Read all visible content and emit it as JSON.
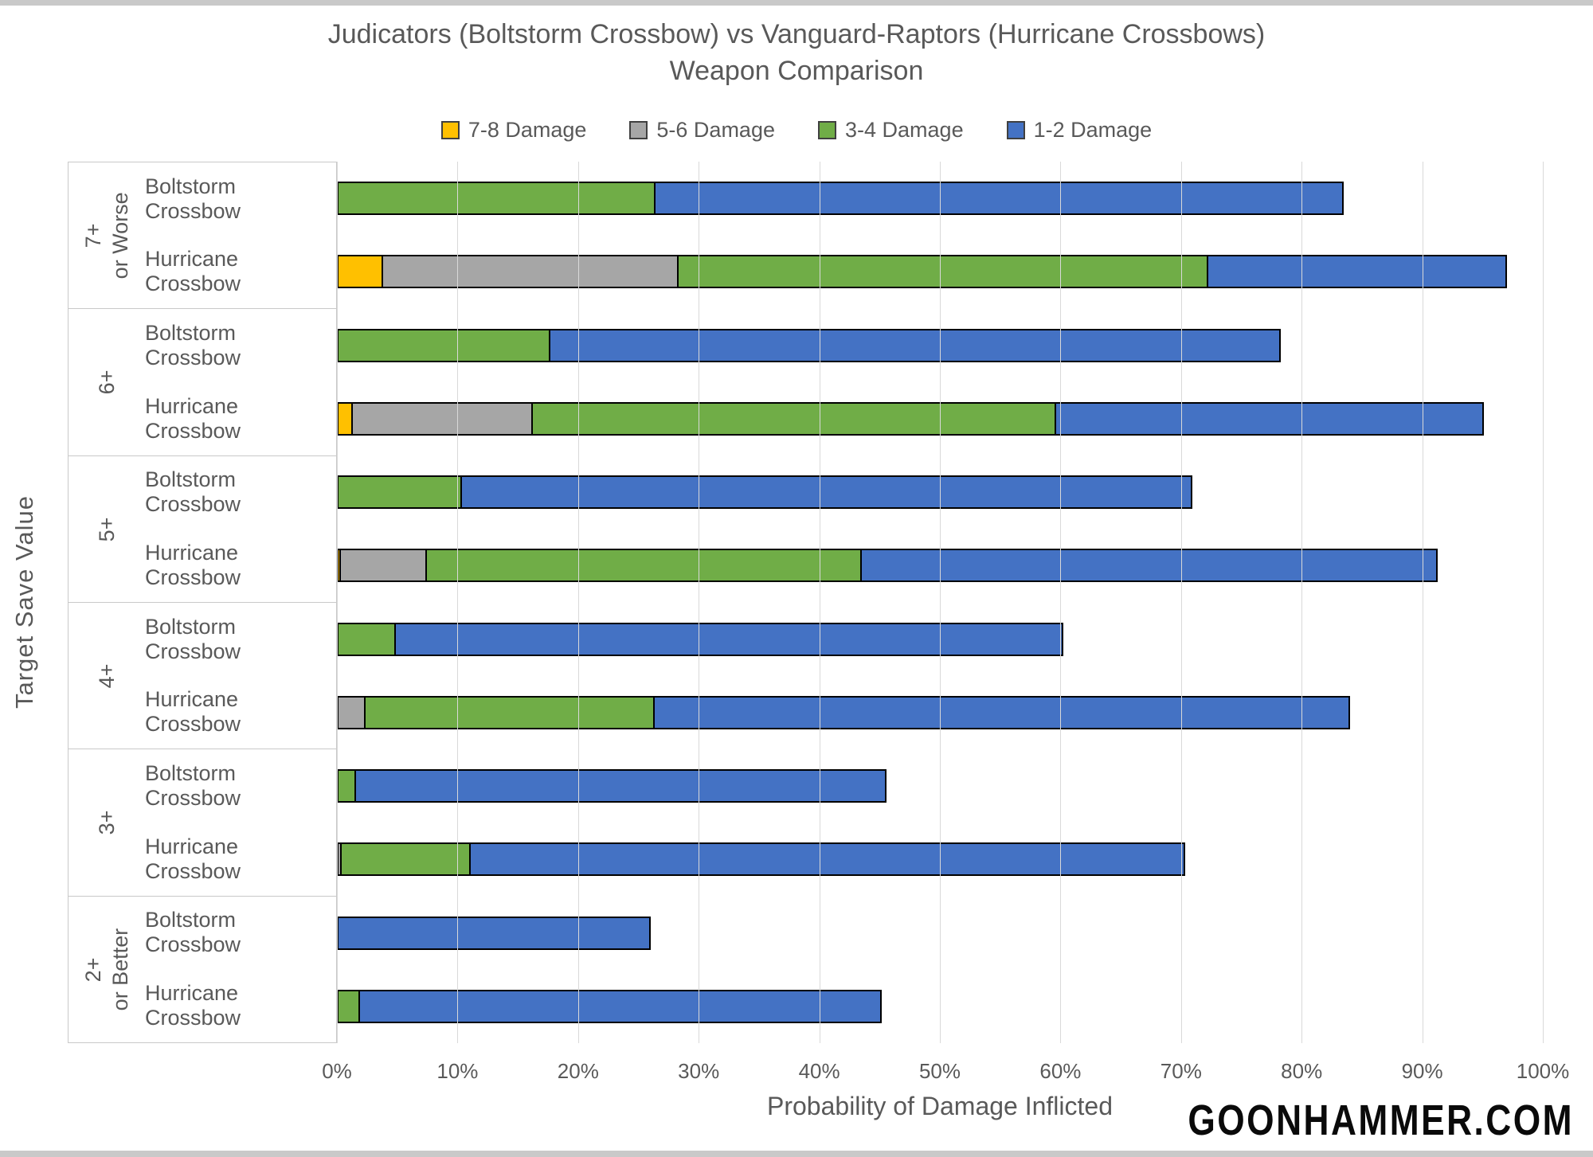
{
  "title": {
    "line1": "Judicators (Boltstorm Crossbow) vs Vanguard-Raptors (Hurricane Crossbows)",
    "line2": "Weapon Comparison"
  },
  "watermark": "GOONHAMMER.COM",
  "colors": {
    "damage_7_8": "#FFC000",
    "damage_5_6": "#A6A6A6",
    "damage_3_4": "#70AD47",
    "damage_1_2": "#4472C4",
    "bar_border": "#000000",
    "gridline": "#D9D9D9",
    "panel_border": "#C9C9C9",
    "text": "#595959"
  },
  "chart_data": {
    "type": "bar",
    "subtype": "horizontal_stacked",
    "title": "Judicators (Boltstorm Crossbow) vs Vanguard-Raptors (Hurricane Crossbows) Weapon Comparison",
    "xlabel": "Probability of Damage Inflicted",
    "ylabel": "Target Save Value",
    "xlim": [
      0,
      100
    ],
    "grid": "vertical",
    "legend_position": "top",
    "x_ticks": [
      "0%",
      "10%",
      "20%",
      "30%",
      "40%",
      "50%",
      "60%",
      "70%",
      "80%",
      "90%",
      "100%"
    ],
    "series_names": [
      "7-8 Damage",
      "5-6 Damage",
      "3-4 Damage",
      "1-2 Damage"
    ],
    "series_colors": [
      "#FFC000",
      "#A6A6A6",
      "#70AD47",
      "#4472C4"
    ],
    "groups": [
      {
        "save": "7+\nor Worse",
        "bars": [
          {
            "name": "Boltstorm Crossbow",
            "segments": [
              0,
              0,
              26.4,
              57.2
            ]
          },
          {
            "name": "Hurricane Crossbow",
            "segments": [
              3.8,
              24.7,
              44.0,
              24.9
            ]
          }
        ]
      },
      {
        "save": "6+",
        "bars": [
          {
            "name": "Boltstorm Crossbow",
            "segments": [
              0,
              0,
              17.7,
              60.7
            ]
          },
          {
            "name": "Hurricane Crossbow",
            "segments": [
              1.3,
              15.1,
              43.5,
              35.6
            ]
          }
        ]
      },
      {
        "save": "5+",
        "bars": [
          {
            "name": "Boltstorm Crossbow",
            "segments": [
              0,
              0,
              10.4,
              60.7
            ]
          },
          {
            "name": "Hurricane Crossbow",
            "segments": [
              0.3,
              7.3,
              36.2,
              47.9
            ]
          }
        ]
      },
      {
        "save": "4+",
        "bars": [
          {
            "name": "Boltstorm Crossbow",
            "segments": [
              0,
              0,
              4.9,
              55.5
            ]
          },
          {
            "name": "Hurricane Crossbow",
            "segments": [
              0,
              2.4,
              24.1,
              57.8
            ]
          }
        ]
      },
      {
        "save": "3+",
        "bars": [
          {
            "name": "Boltstorm Crossbow",
            "segments": [
              0,
              0,
              1.6,
              44.1
            ]
          },
          {
            "name": "Hurricane Crossbow",
            "segments": [
              0,
              0.4,
              10.8,
              59.4
            ]
          }
        ]
      },
      {
        "save": "2+\nor Better",
        "bars": [
          {
            "name": "Boltstorm Crossbow",
            "segments": [
              0,
              0,
              0,
              26.0
            ]
          },
          {
            "name": "Hurricane Crossbow",
            "segments": [
              0,
              0,
              1.9,
              43.4
            ]
          }
        ]
      }
    ]
  }
}
